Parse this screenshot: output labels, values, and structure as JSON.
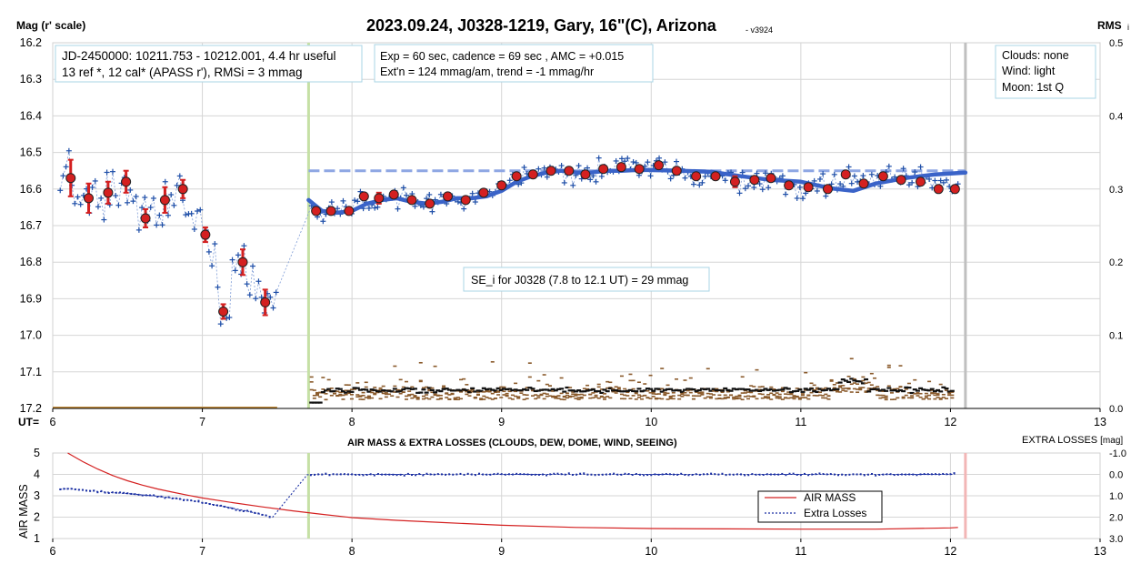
{
  "title": "2023.09.24, J0328-1219, Gary, 16\"(C), Arizona",
  "version": "- v3924",
  "colors": {
    "raw_points": "#1f4fa8",
    "binned_points": "#d42020",
    "trend_line": "#3a63c8",
    "reference_level": "#8ea6e3",
    "rms": "#8a5a2b",
    "rms_average": "#111111",
    "air_mass": "#d42020",
    "extra_losses": "#1a2fa3",
    "start_marker": "#c5e0a5",
    "end_marker": "#c0c0c0",
    "end_marker_bottom": "#f2b6b6"
  },
  "chart_data": [
    {
      "type": "scatter",
      "ylabel_left": "Mag (r' scale)",
      "ylabel_right": "RMS",
      "ylabel_right_sub": "i",
      "xlabel": "UT=",
      "xlim": [
        6,
        13
      ],
      "ylim": [
        16.2,
        17.2
      ],
      "y_inverted": true,
      "xticks": [
        "6",
        "7",
        "8",
        "9",
        "10",
        "11",
        "12",
        "13"
      ],
      "yticks_left": [
        "16.2",
        "16.3",
        "16.4",
        "16.5",
        "16.6",
        "16.7",
        "16.8",
        "16.9",
        "17.0",
        "17.1",
        "17.2"
      ],
      "yticks_right": [
        "0.5",
        "0.4",
        "0.3",
        "0.2",
        "0.1",
        "0.0"
      ],
      "rms_range": [
        0.0,
        0.5
      ],
      "grid": true,
      "observation_start_ut": 7.71,
      "observation_end_ut": 12.1,
      "reference_level_mag": 16.55,
      "reference_level_range_ut": [
        7.71,
        12.1
      ],
      "annotations": {
        "box1_line1": "JD-2450000: 10211.753 - 10212.001, 4.4 hr useful",
        "box1_line2": "13 ref *, 12 cal*  (APASS r'), RMSi = 3 mmag",
        "box2_line1": "Exp = 60 sec, cadence = 69 sec , AMC = +0.015",
        "box2_line2": "Ext'n = 124 mmag/am, trend = -1 mmag/hr",
        "box3_line1": "Clouds: none",
        "box3_line2": "Wind:   light",
        "box3_line3": "Moon: 1st Q",
        "se_label": "SE_i for J0328 (7.8 to 12.1 UT) = 29 mmag"
      },
      "series": [
        {
          "name": "binned",
          "x": [
            6.12,
            6.24,
            6.37,
            6.49,
            6.62,
            6.75,
            6.87,
            7.02,
            7.14,
            7.27,
            7.42,
            7.76,
            7.86,
            7.98,
            8.08,
            8.18,
            8.28,
            8.4,
            8.52,
            8.64,
            8.76,
            8.88,
            9.0,
            9.1,
            9.21,
            9.33,
            9.45,
            9.56,
            9.68,
            9.8,
            9.92,
            10.05,
            10.17,
            10.3,
            10.43,
            10.56,
            10.69,
            10.8,
            10.92,
            11.05,
            11.18,
            11.3,
            11.42,
            11.55,
            11.67,
            11.8,
            11.92,
            12.03
          ],
          "y": [
            16.57,
            16.625,
            16.61,
            16.58,
            16.68,
            16.63,
            16.6,
            16.725,
            16.935,
            16.8,
            16.91,
            16.66,
            16.66,
            16.66,
            16.62,
            16.625,
            16.615,
            16.63,
            16.64,
            16.62,
            16.63,
            16.61,
            16.59,
            16.565,
            16.56,
            16.55,
            16.55,
            16.56,
            16.545,
            16.54,
            16.545,
            16.535,
            16.55,
            16.565,
            16.565,
            16.58,
            16.575,
            16.57,
            16.59,
            16.595,
            16.6,
            16.56,
            16.585,
            16.565,
            16.575,
            16.58,
            16.6,
            16.6
          ],
          "error": [
            0.05,
            0.04,
            0.03,
            0.03,
            0.025,
            0.035,
            0.025,
            0.02,
            0.02,
            0.035,
            0.035,
            0.01,
            0.0,
            0.01,
            0.0,
            0.015,
            0.0,
            0.0,
            0.0,
            0.0,
            0.0,
            0.0,
            0.0,
            0.0,
            0.0,
            0.0,
            0.0,
            0.0,
            0.0,
            0.0,
            0.0,
            0.0,
            0.0,
            0.0,
            0.0,
            0.015,
            0.0,
            0.0,
            0.0,
            0.0,
            0.0,
            0.0,
            0.0,
            0.0,
            0.0,
            0.0,
            0.0,
            0.0
          ]
        },
        {
          "name": "trend",
          "x": [
            7.71,
            7.8,
            7.9,
            8.0,
            8.1,
            8.2,
            8.3,
            8.4,
            8.5,
            8.6,
            8.7,
            8.8,
            8.9,
            9.0,
            9.1,
            9.2,
            9.3,
            9.4,
            9.5,
            9.6,
            9.7,
            9.8,
            9.9,
            10.0,
            10.2,
            10.4,
            10.6,
            10.8,
            11.0,
            11.2,
            11.35,
            11.5,
            11.7,
            11.9,
            12.1
          ],
          "y": [
            16.63,
            16.66,
            16.665,
            16.66,
            16.64,
            16.63,
            16.625,
            16.635,
            16.64,
            16.635,
            16.625,
            16.625,
            16.62,
            16.605,
            16.58,
            16.565,
            16.555,
            16.55,
            16.555,
            16.555,
            16.55,
            16.55,
            16.548,
            16.548,
            16.55,
            16.553,
            16.565,
            16.575,
            16.58,
            16.598,
            16.605,
            16.585,
            16.57,
            16.56,
            16.555
          ]
        }
      ]
    },
    {
      "type": "line",
      "title": "AIR MASS & EXTRA LOSSES (CLOUDS, DEW, DOME, WIND, SEEING)",
      "ylabel_left": "AIR MASS",
      "ylabel_right": "EXTRA LOSSES [mag]",
      "ylabel_right_main": "EXTRA LOSSES",
      "ylabel_right_unit": "[mag]",
      "xlim": [
        6,
        13
      ],
      "ylim": [
        1,
        5
      ],
      "ylim_right": [
        3.0,
        -1.0
      ],
      "xticks": [
        "6",
        "7",
        "8",
        "9",
        "10",
        "11",
        "12",
        "13"
      ],
      "yticks_left": [
        "5",
        "4",
        "3",
        "2",
        "1"
      ],
      "yticks_right": [
        "-1.0",
        "0.0",
        "1.0",
        "2.0",
        "3.0"
      ],
      "legend": {
        "placement": "center-right",
        "entries": [
          "AIR MASS",
          "Extra Losses"
        ]
      },
      "series": [
        {
          "name": "AIR MASS",
          "x": [
            6.1,
            6.2,
            6.3,
            6.4,
            6.5,
            6.6,
            6.7,
            6.8,
            6.9,
            7.0,
            7.2,
            7.4,
            7.6,
            7.8,
            8.0,
            8.3,
            8.6,
            9.0,
            9.5,
            10.0,
            10.5,
            11.0,
            11.5,
            12.0,
            12.05
          ],
          "y": [
            5.0,
            4.6,
            4.25,
            3.95,
            3.7,
            3.5,
            3.32,
            3.17,
            3.03,
            2.9,
            2.68,
            2.48,
            2.3,
            2.13,
            1.98,
            1.85,
            1.75,
            1.62,
            1.52,
            1.47,
            1.45,
            1.44,
            1.44,
            1.5,
            1.52
          ]
        },
        {
          "name": "Extra Losses",
          "x": [
            6.05,
            6.1,
            6.2,
            6.3,
            6.4,
            6.5,
            6.6,
            6.7,
            6.8,
            6.9,
            7.0,
            7.1,
            7.2,
            7.3,
            7.4,
            7.47,
            7.7,
            7.72,
            8.0,
            9.0,
            10.0,
            11.0,
            12.03
          ],
          "y": [
            0.7,
            0.66,
            0.72,
            0.8,
            0.85,
            0.9,
            0.96,
            1.02,
            1.1,
            1.2,
            1.32,
            1.45,
            1.58,
            1.72,
            1.88,
            2.0,
            0.02,
            0.0,
            0.0,
            0.0,
            0.0,
            0.0,
            0.0
          ]
        }
      ]
    }
  ]
}
